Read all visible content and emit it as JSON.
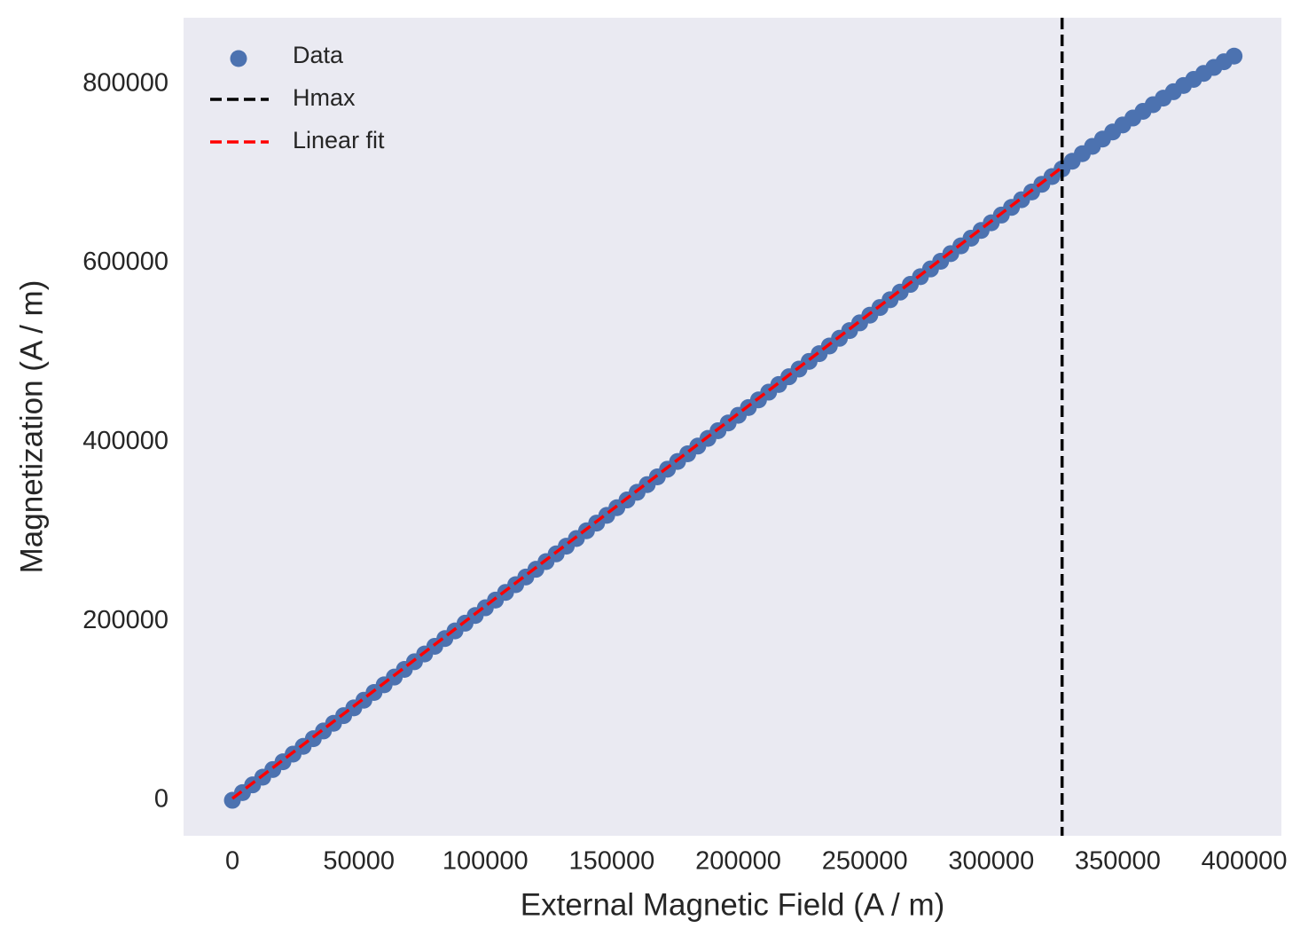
{
  "chart_data": {
    "type": "scatter",
    "xlabel": "External Magnetic Field (A / m)",
    "ylabel": "Magnetization (A / m)",
    "xlim": [
      -19300,
      414700
    ],
    "ylim": [
      -39600,
      874000
    ],
    "xticks": [
      0,
      50000,
      100000,
      150000,
      200000,
      250000,
      300000,
      350000,
      400000
    ],
    "yticks": [
      0,
      200000,
      400000,
      600000,
      800000
    ],
    "grid": false,
    "legend": "upper left",
    "background": "#eaeaf2",
    "series": [
      {
        "name": "Data",
        "type": "scatter",
        "color": "#4c72b0",
        "x": [
          0,
          4000,
          8000,
          12000,
          16000,
          20000,
          24000,
          28000,
          32000,
          36000,
          40000,
          44000,
          48000,
          52000,
          56000,
          60000,
          64000,
          68000,
          72000,
          76000,
          80000,
          84000,
          88000,
          92000,
          96000,
          100000,
          104000,
          108000,
          112000,
          116000,
          120000,
          124000,
          128000,
          132000,
          136000,
          140000,
          144000,
          148000,
          152000,
          156000,
          160000,
          164000,
          168000,
          172000,
          176000,
          180000,
          184000,
          188000,
          192000,
          196000,
          200000,
          204000,
          208000,
          212000,
          216000,
          220000,
          224000,
          228000,
          232000,
          236000,
          240000,
          244000,
          248000,
          252000,
          256000,
          260000,
          264000,
          268000,
          272000,
          276000,
          280000,
          284000,
          288000,
          292000,
          296000,
          300000,
          304000,
          308000,
          312000,
          316000,
          320000,
          324000,
          328000,
          332000,
          336000,
          340000,
          344000,
          348000,
          352000,
          356000,
          360000,
          364000,
          368000,
          372000,
          376000,
          380000,
          384000,
          388000,
          392000,
          396000
        ],
        "values": [
          0,
          8600,
          17200,
          25800,
          34400,
          43000,
          51600,
          60200,
          68800,
          77400,
          86000,
          94600,
          103200,
          111800,
          120400,
          129000,
          137600,
          146200,
          154800,
          163400,
          172000,
          180600,
          189200,
          197800,
          206400,
          215000,
          223600,
          232200,
          240800,
          249400,
          258000,
          266600,
          275200,
          283800,
          292400,
          301000,
          309600,
          318200,
          326800,
          335400,
          344000,
          352600,
          361200,
          369800,
          378400,
          387000,
          395600,
          404200,
          412800,
          421400,
          430000,
          438600,
          447200,
          455800,
          464400,
          473000,
          481600,
          490200,
          498800,
          507400,
          516000,
          524600,
          533200,
          541800,
          550400,
          559000,
          567600,
          576200,
          584800,
          593400,
          602000,
          610600,
          619200,
          627800,
          636400,
          645000,
          653600,
          662200,
          670800,
          679400,
          688000,
          696600,
          705200,
          713730,
          722120,
          730370,
          738480,
          746450,
          754280,
          761970,
          769520,
          776930,
          784200,
          791330,
          798320,
          805170,
          811880,
          818450,
          824880,
          831170
        ]
      },
      {
        "name": "Hmax",
        "type": "vline",
        "color": "#000000",
        "x": [
          328000
        ]
      },
      {
        "name": "Linear fit",
        "type": "line",
        "color": "#ff0000",
        "x": [
          0,
          328000
        ],
        "values": [
          2000,
          707000
        ]
      }
    ]
  }
}
